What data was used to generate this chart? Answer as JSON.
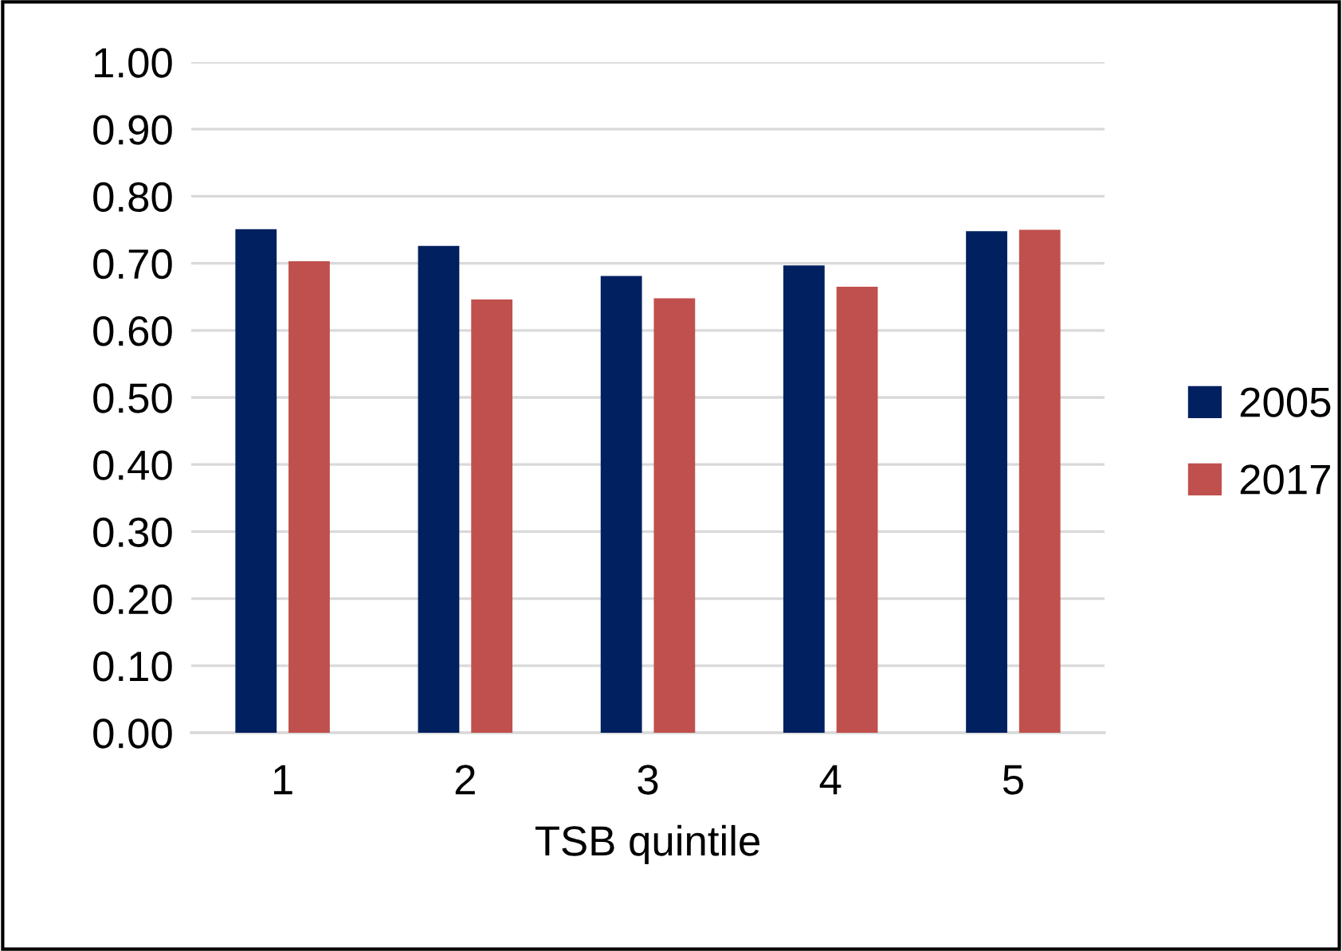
{
  "chart_data": {
    "type": "bar",
    "xlabel": "TSB quintile",
    "categories": [
      "1",
      "2",
      "3",
      "4",
      "5"
    ],
    "series": [
      {
        "name": "2005",
        "color": "#002060",
        "values": [
          0.751,
          0.726,
          0.681,
          0.697,
          0.748
        ]
      },
      {
        "name": "2017",
        "color": "#c0504d",
        "values": [
          0.703,
          0.646,
          0.648,
          0.665,
          0.75
        ]
      }
    ],
    "ylim": [
      0,
      1
    ],
    "yticks": [
      {
        "value": 0,
        "label": "0.00"
      },
      {
        "value": 0.1,
        "label": "0.10"
      },
      {
        "value": 0.2,
        "label": "0.20"
      },
      {
        "value": 0.3,
        "label": "0.30"
      },
      {
        "value": 0.4,
        "label": "0.40"
      },
      {
        "value": 0.5,
        "label": "0.50"
      },
      {
        "value": 0.6,
        "label": "0.60"
      },
      {
        "value": 0.7,
        "label": "0.70"
      },
      {
        "value": 0.8,
        "label": "0.80"
      },
      {
        "value": 0.9,
        "label": "0.90"
      },
      {
        "value": 1,
        "label": "1.00"
      }
    ],
    "grid": "y",
    "legend": "right"
  }
}
